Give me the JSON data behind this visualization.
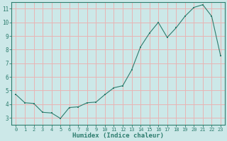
{
  "x": [
    0,
    1,
    2,
    3,
    4,
    5,
    6,
    7,
    8,
    9,
    10,
    11,
    12,
    13,
    14,
    15,
    16,
    17,
    18,
    19,
    20,
    21,
    22,
    23
  ],
  "y": [
    4.7,
    4.1,
    4.05,
    3.4,
    3.35,
    2.95,
    3.75,
    3.8,
    4.1,
    4.15,
    4.7,
    5.2,
    5.35,
    6.5,
    8.2,
    9.2,
    10.0,
    8.9,
    9.6,
    10.45,
    11.1,
    11.3,
    10.45,
    7.55
  ],
  "xlabel": "Humidex (Indice chaleur)",
  "ylabel": "",
  "xlim": [
    -0.5,
    23.5
  ],
  "ylim": [
    2.5,
    11.5
  ],
  "yticks": [
    3,
    4,
    5,
    6,
    7,
    8,
    9,
    10,
    11
  ],
  "xticks": [
    0,
    1,
    2,
    3,
    4,
    5,
    6,
    7,
    8,
    9,
    10,
    11,
    12,
    13,
    14,
    15,
    16,
    17,
    18,
    19,
    20,
    21,
    22,
    23
  ],
  "line_color": "#2d7d6e",
  "marker_color": "#2d7d6e",
  "bg_color": "#cce8e8",
  "grid_color": "#e8b4b4",
  "axis_color": "#2d7d6e",
  "font_color": "#2d7d6e",
  "font_family": "monospace"
}
